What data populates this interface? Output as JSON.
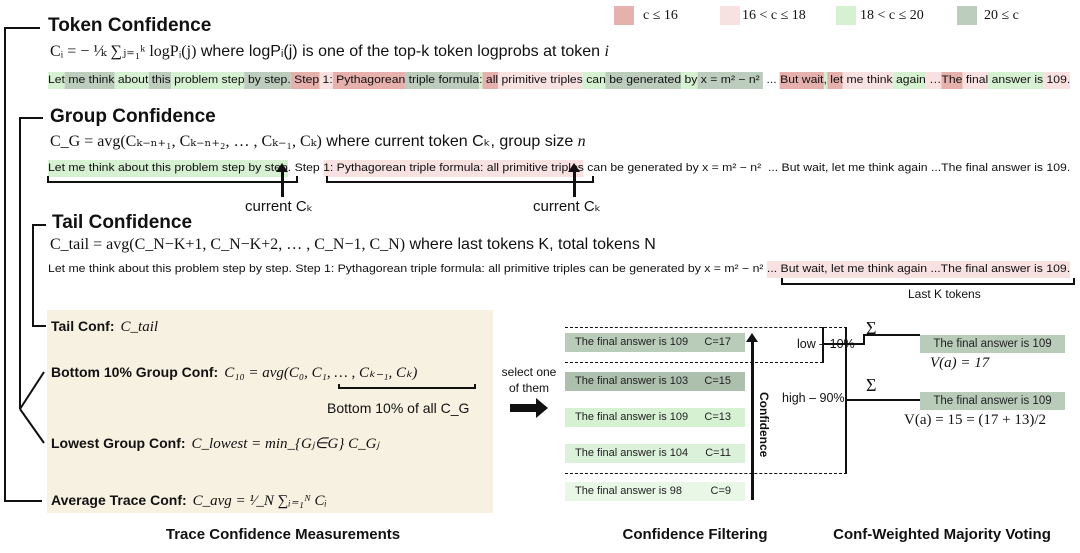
{
  "colors": {
    "low": "#e6b1ad",
    "mid": "#f8e1e1",
    "high": "#d6f0d2",
    "vhigh": "#bdcdbd",
    "panel": "#f7f1e1"
  },
  "legend": [
    {
      "level": "low",
      "label": "c ≤ 16"
    },
    {
      "level": "mid",
      "label": "16 < c ≤ 18"
    },
    {
      "level": "high",
      "label": "18 < c ≤ 20"
    },
    {
      "level": "vhigh",
      "label": "20 ≤ c"
    }
  ],
  "token": {
    "title": "Token Confidence",
    "formula": "Cᵢ = − ¹⁄ₖ ∑ⱼ₌₁ᵏ logPᵢ(j)",
    "formula_text": " where logPᵢ(j) is one of the top-k token logprobs at token ",
    "formula_var": "i",
    "tokens": [
      {
        "t": "Let",
        "l": "high"
      },
      {
        "t": " me think",
        "l": "vhigh"
      },
      {
        "t": " about",
        "l": "high"
      },
      {
        "t": " this",
        "l": "vhigh"
      },
      {
        "t": " problem step",
        "l": "high"
      },
      {
        "t": " by step.",
        "l": "vhigh"
      },
      {
        "t": " Step",
        "l": "low"
      },
      {
        "t": " 1:",
        "l": "mid"
      },
      {
        "t": " Pythagorean",
        "l": "low"
      },
      {
        "t": " triple formula",
        "l": "vhigh"
      },
      {
        "t": ":",
        "l": "high"
      },
      {
        "t": " all",
        "l": "low"
      },
      {
        "t": " primitive triples",
        "l": "mid"
      },
      {
        "t": " can",
        "l": "high"
      },
      {
        "t": " be generated",
        "l": "vhigh"
      },
      {
        "t": " by",
        "l": "high"
      },
      {
        "t": " x = m² − n² ",
        "l": "vhigh"
      },
      {
        "t": " ... ",
        "l": ""
      },
      {
        "t": "But wait",
        "l": "low"
      },
      {
        "t": ",",
        "l": "high"
      },
      {
        "t": " let",
        "l": "low"
      },
      {
        "t": " me think",
        "l": "mid"
      },
      {
        "t": " again",
        "l": "high"
      },
      {
        "t": " …",
        "l": "mid"
      },
      {
        "t": "The",
        "l": "low"
      },
      {
        "t": " final",
        "l": "mid"
      },
      {
        "t": " answer is",
        "l": "high"
      },
      {
        "t": " 109.",
        "l": "mid"
      }
    ]
  },
  "group": {
    "title": "Group Confidence",
    "formula": "C_G = avg(Cₖ₋ₙ₊₁, Cₖ₋ₙ₊₂, … , Cₖ₋₁, Cₖ)",
    "formula_text": " where current token Cₖ, group size ",
    "formula_var": "n",
    "tokens": [
      {
        "t": "Let me think about this problem step by step",
        "l": "high"
      },
      {
        "t": ". Step ",
        "l": ""
      },
      {
        "t": "1: Pythagorean triple formula: all primitive triples",
        "l": "mid"
      },
      {
        "t": " can be generated by x = m² − n²  ... But wait, let me think again ...The final answer is 109.",
        "l": ""
      }
    ],
    "current_label_1": "current Cₖ",
    "current_label_2": "current  Cₖ"
  },
  "tail": {
    "title": "Tail Confidence",
    "formula": "C_tail = avg(C_N−K+1, C_N−K+2, … , C_N−1, C_N)",
    "formula_text": " where last tokens K, total tokens N",
    "tokens": [
      {
        "t": "Let me think about this problem step by step. Step 1: Pythagorean triple formula: all primitive triples can be generated by x = m² − n² ",
        "l": ""
      },
      {
        "t": "... But wait, let me think again ...The final answer is 109.",
        "l": "mid"
      }
    ],
    "brace_label": "Last K tokens"
  },
  "measurements": {
    "items": [
      {
        "label": "Tail Conf:",
        "formula": "C_tail"
      },
      {
        "label": "Bottom 10% Group Conf:",
        "formula": "C₁₀ = avg(C₀, C₁, … , Cₖ₋₁, Cₖ)"
      },
      {
        "label": "Lowest Group Conf:",
        "formula": "C_lowest = min_{Gⱼ∈G} C_Gⱼ"
      },
      {
        "label": "Average Trace Conf:",
        "formula": "C_avg = ¹⁄_N ∑ᵢ₌₁ᴺ Cᵢ"
      }
    ],
    "bottom_note": "Bottom 10% of all C_G",
    "caption": "Trace Confidence Measurements"
  },
  "select_note": [
    "select one",
    "of them"
  ],
  "filtering": {
    "answers": [
      {
        "text": "The final answer is 109",
        "conf": "C=17",
        "color": "#b9cbb9"
      },
      {
        "text": "The final answer is 103",
        "conf": "C=15",
        "color": "#adbfad"
      },
      {
        "text": "The final answer is 109",
        "conf": "C=13",
        "color": "#d6f0d2"
      },
      {
        "text": "The final answer is 104",
        "conf": "C=11",
        "color": "#dcf1d9"
      },
      {
        "text": "The final answer is 98",
        "conf": "C=9",
        "color": "#e9f7e7"
      }
    ],
    "axis_label": "Confidence",
    "low_label": "low – 10%",
    "high_label": "high – 90%",
    "caption": "Confidence Filtering"
  },
  "voting": {
    "sum_symbol": "Σ",
    "results": [
      {
        "answer": "The final answer is 109",
        "value": "V(a) = 17"
      },
      {
        "answer": "The final answer is 109",
        "value": "V(a) = 15 = (17 + 13)/2"
      }
    ],
    "caption": "Conf-Weighted Majority Voting"
  }
}
